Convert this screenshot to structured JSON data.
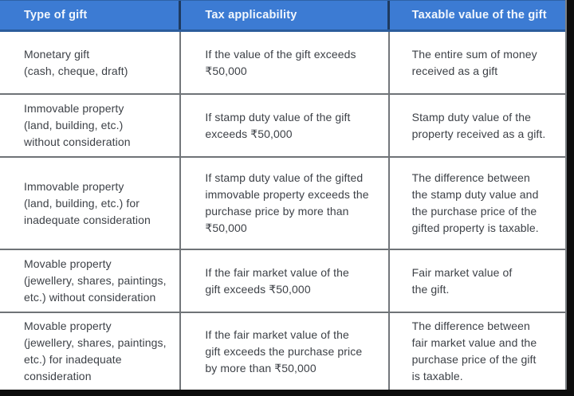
{
  "title": "Gift taxation table",
  "colors": {
    "header_background": "#3c7bd3",
    "header_text": "#f2f7fd",
    "header_divider": "#1e3a5f",
    "grid_line": "#6f7377",
    "body_text": "#3d4147",
    "page_edge": "#0d0d0d",
    "row_background": "#ffffff"
  },
  "table": {
    "columns": [
      "Type of gift",
      "Tax applicability",
      "Taxable value of the gift"
    ],
    "rows": [
      {
        "cells": [
          "Monetary gift\n(cash, cheque, draft)",
          "If the value of the gift exceeds\n₹50,000",
          "The entire sum of money\nreceived as a gift"
        ]
      },
      {
        "cells": [
          "Immovable property\n(land, building, etc.)\nwithout consideration",
          "If stamp duty value of the gift\nexceeds ₹50,000",
          "Stamp duty value of the\nproperty received as a gift."
        ]
      },
      {
        "cells": [
          "Immovable property\n(land, building, etc.) for\ninadequate consideration",
          "If stamp duty value of the gifted\nimmovable property exceeds the\npurchase price by more than\n₹50,000",
          "The difference between\nthe stamp duty value and\nthe purchase price of the\ngifted property is taxable."
        ]
      },
      {
        "cells": [
          "Movable property\n(jewellery, shares, paintings,\netc.) without consideration",
          "If the fair market value of the\ngift exceeds ₹50,000",
          "Fair market value of\nthe gift."
        ]
      },
      {
        "cells": [
          "Movable property\n(jewellery, shares, paintings,\netc.) for inadequate\nconsideration",
          "If the fair market value of the\ngift exceeds the purchase price\nby more than ₹50,000",
          "The difference between\nfair market value and the\npurchase price of the gift\nis taxable."
        ]
      }
    ]
  }
}
